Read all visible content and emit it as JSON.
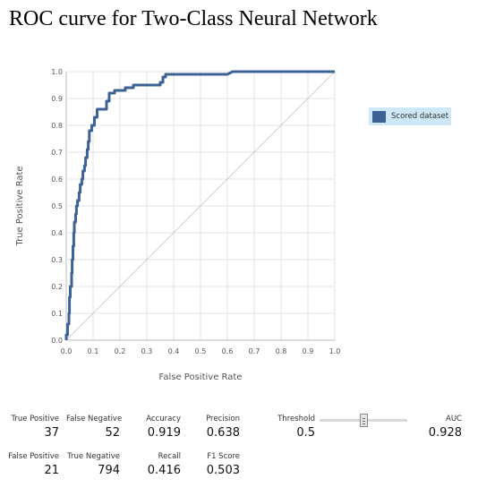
{
  "title": "ROC curve for Two-Class Neural Network",
  "chart_data": {
    "type": "line",
    "xlabel": "False Positive Rate",
    "ylabel": "True Positive Rate",
    "xlim": [
      0,
      1
    ],
    "ylim": [
      0,
      1
    ],
    "xticks": [
      "0.0",
      "0.1",
      "0.2",
      "0.3",
      "0.4",
      "0.5",
      "0.6",
      "0.7",
      "0.8",
      "0.9",
      "1.0"
    ],
    "yticks": [
      "0.0",
      "0.1",
      "0.2",
      "0.3",
      "0.4",
      "0.5",
      "0.6",
      "0.7",
      "0.8",
      "0.9",
      "1.0"
    ],
    "grid": true,
    "legend_position": "right",
    "diagonal_reference": true,
    "series": [
      {
        "name": "Scored dataset",
        "color": "#3c6296",
        "points": [
          [
            0.0,
            0.0
          ],
          [
            0.0,
            0.02
          ],
          [
            0.005,
            0.02
          ],
          [
            0.005,
            0.06
          ],
          [
            0.01,
            0.06
          ],
          [
            0.01,
            0.1
          ],
          [
            0.012,
            0.1
          ],
          [
            0.012,
            0.16
          ],
          [
            0.015,
            0.16
          ],
          [
            0.015,
            0.2
          ],
          [
            0.02,
            0.2
          ],
          [
            0.02,
            0.25
          ],
          [
            0.022,
            0.25
          ],
          [
            0.022,
            0.3
          ],
          [
            0.025,
            0.3
          ],
          [
            0.025,
            0.35
          ],
          [
            0.028,
            0.35
          ],
          [
            0.028,
            0.4
          ],
          [
            0.03,
            0.4
          ],
          [
            0.03,
            0.44
          ],
          [
            0.035,
            0.44
          ],
          [
            0.035,
            0.47
          ],
          [
            0.038,
            0.47
          ],
          [
            0.038,
            0.5
          ],
          [
            0.042,
            0.5
          ],
          [
            0.042,
            0.52
          ],
          [
            0.048,
            0.52
          ],
          [
            0.048,
            0.55
          ],
          [
            0.052,
            0.55
          ],
          [
            0.052,
            0.58
          ],
          [
            0.058,
            0.58
          ],
          [
            0.058,
            0.6
          ],
          [
            0.062,
            0.6
          ],
          [
            0.062,
            0.63
          ],
          [
            0.068,
            0.63
          ],
          [
            0.068,
            0.65
          ],
          [
            0.072,
            0.65
          ],
          [
            0.072,
            0.68
          ],
          [
            0.078,
            0.68
          ],
          [
            0.078,
            0.71
          ],
          [
            0.082,
            0.71
          ],
          [
            0.082,
            0.74
          ],
          [
            0.086,
            0.74
          ],
          [
            0.086,
            0.78
          ],
          [
            0.095,
            0.78
          ],
          [
            0.095,
            0.8
          ],
          [
            0.105,
            0.8
          ],
          [
            0.105,
            0.83
          ],
          [
            0.115,
            0.83
          ],
          [
            0.115,
            0.86
          ],
          [
            0.15,
            0.86
          ],
          [
            0.15,
            0.89
          ],
          [
            0.16,
            0.89
          ],
          [
            0.16,
            0.92
          ],
          [
            0.18,
            0.92
          ],
          [
            0.18,
            0.93
          ],
          [
            0.22,
            0.93
          ],
          [
            0.22,
            0.94
          ],
          [
            0.25,
            0.94
          ],
          [
            0.25,
            0.95
          ],
          [
            0.35,
            0.95
          ],
          [
            0.35,
            0.96
          ],
          [
            0.36,
            0.96
          ],
          [
            0.36,
            0.98
          ],
          [
            0.37,
            0.98
          ],
          [
            0.37,
            0.99
          ],
          [
            0.6,
            0.99
          ],
          [
            0.62,
            1.0
          ],
          [
            1.0,
            1.0
          ]
        ]
      }
    ]
  },
  "legend": {
    "label": "Scored dataset",
    "color": "#3c6296"
  },
  "metrics": {
    "true_positive": {
      "label": "True Positive",
      "value": "37"
    },
    "false_negative": {
      "label": "False Negative",
      "value": "52"
    },
    "accuracy": {
      "label": "Accuracy",
      "value": "0.919"
    },
    "precision": {
      "label": "Precision",
      "value": "0.638"
    },
    "threshold": {
      "label": "Threshold",
      "value": "0.5",
      "slider_fraction": 0.5
    },
    "auc": {
      "label": "AUC",
      "value": "0.928"
    },
    "false_positive": {
      "label": "False Positive",
      "value": "21"
    },
    "true_negative": {
      "label": "True Negative",
      "value": "794"
    },
    "recall": {
      "label": "Recall",
      "value": "0.416"
    },
    "f1_score": {
      "label": "F1 Score",
      "value": "0.503"
    }
  }
}
